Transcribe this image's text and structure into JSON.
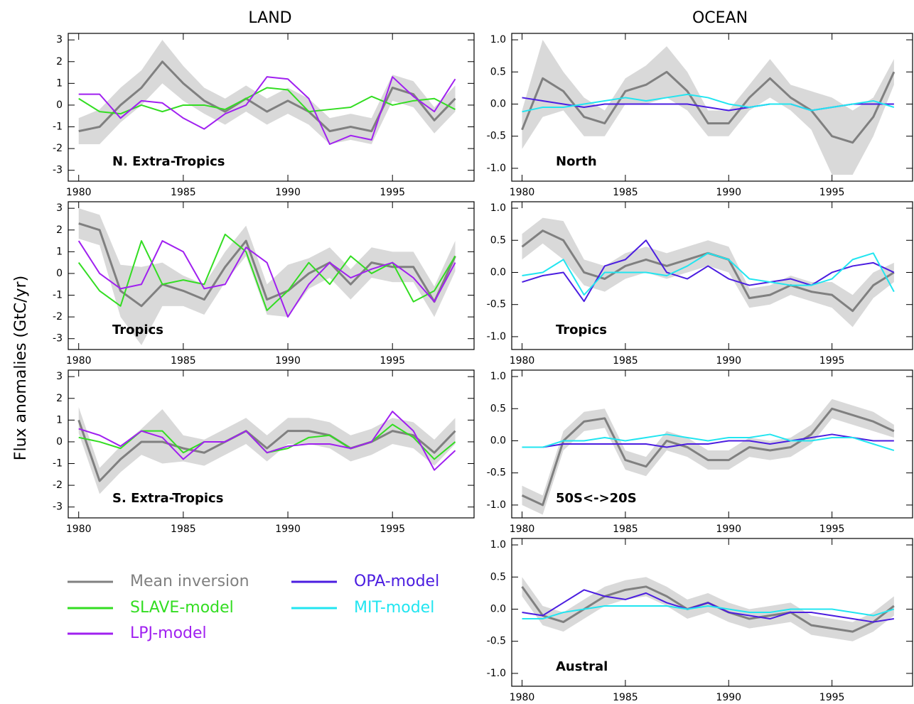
{
  "header": {
    "column_titles": [
      "LAND",
      "OCEAN"
    ],
    "y_label": "Flux anomalies (GtC/yr)"
  },
  "chart_data": [
    {
      "type": "line",
      "title": "N. Extra-Tropics",
      "x": [
        1980,
        1981,
        1982,
        1983,
        1984,
        1985,
        1986,
        1987,
        1988,
        1989,
        1990,
        1991,
        1992,
        1993,
        1994,
        1995,
        1996,
        1997,
        1998
      ],
      "xlim": [
        1979.5,
        1998.9
      ],
      "ylim": [
        -3.5,
        3.3
      ],
      "xticks": [
        1980,
        1985,
        1990,
        1995
      ],
      "yticks": [
        -3,
        -2,
        -1,
        0,
        1,
        2,
        3
      ],
      "band_color": "#d9d9d9",
      "band_upper": [
        -0.6,
        -0.2,
        0.8,
        1.6,
        3.0,
        1.8,
        0.8,
        0.3,
        0.9,
        0.3,
        0.8,
        0.3,
        -0.6,
        -0.4,
        -0.6,
        1.4,
        1.1,
        -0.1,
        0.9
      ],
      "band_lower": [
        -1.8,
        -1.8,
        -0.8,
        0.0,
        1.0,
        0.2,
        -0.4,
        -0.9,
        -0.3,
        -0.9,
        -0.4,
        -0.9,
        -1.8,
        -1.6,
        -1.8,
        0.2,
        -0.1,
        -1.3,
        -0.3
      ],
      "series": [
        {
          "name": "Mean inversion",
          "color": "#808080",
          "values": [
            -1.2,
            -1.0,
            0.0,
            0.8,
            2.0,
            1.0,
            0.2,
            -0.3,
            0.3,
            -0.3,
            0.2,
            -0.3,
            -1.2,
            -1.0,
            -1.2,
            0.8,
            0.5,
            -0.7,
            0.3
          ]
        },
        {
          "name": "SLAVE-model",
          "color": "#33dd22",
          "values": [
            0.3,
            -0.3,
            -0.4,
            0.0,
            -0.3,
            0.0,
            0.0,
            -0.2,
            0.3,
            0.8,
            0.7,
            -0.3,
            -0.2,
            -0.1,
            0.4,
            0.0,
            0.2,
            0.3,
            -0.2
          ]
        },
        {
          "name": "LPJ-model",
          "color": "#a020f0",
          "values": [
            0.5,
            0.5,
            -0.6,
            0.2,
            0.1,
            -0.6,
            -1.1,
            -0.4,
            0.0,
            1.3,
            1.2,
            0.3,
            -1.8,
            -1.4,
            -1.6,
            1.3,
            0.4,
            -0.3,
            1.2
          ]
        }
      ]
    },
    {
      "type": "line",
      "title": "Tropics",
      "x": [
        1980,
        1981,
        1982,
        1983,
        1984,
        1985,
        1986,
        1987,
        1988,
        1989,
        1990,
        1991,
        1992,
        1993,
        1994,
        1995,
        1996,
        1997,
        1998
      ],
      "xlim": [
        1979.5,
        1998.9
      ],
      "ylim": [
        -3.5,
        3.3
      ],
      "xticks": [
        1980,
        1985,
        1990,
        1995
      ],
      "yticks": [
        -3,
        -2,
        -1,
        0,
        1,
        2,
        3
      ],
      "band_color": "#d9d9d9",
      "band_upper": [
        3.0,
        2.7,
        0.4,
        0.3,
        0.5,
        -0.1,
        -0.5,
        1.0,
        2.2,
        -0.5,
        0.4,
        0.7,
        1.2,
        0.2,
        1.2,
        1.0,
        1.0,
        -0.6,
        1.5
      ],
      "band_lower": [
        1.6,
        1.3,
        -2.0,
        -3.3,
        -1.5,
        -1.5,
        -1.9,
        -0.4,
        0.8,
        -1.9,
        -2.0,
        -0.7,
        -0.2,
        -1.2,
        -0.2,
        -0.4,
        -0.4,
        -2.0,
        0.1
      ],
      "series": [
        {
          "name": "Mean inversion",
          "color": "#808080",
          "values": [
            2.3,
            2.0,
            -0.8,
            -1.5,
            -0.5,
            -0.8,
            -1.2,
            0.3,
            1.5,
            -1.2,
            -0.8,
            0.0,
            0.5,
            -0.5,
            0.5,
            0.3,
            0.3,
            -1.3,
            0.8
          ]
        },
        {
          "name": "SLAVE-model",
          "color": "#33dd22",
          "values": [
            0.5,
            -0.8,
            -1.5,
            1.5,
            -0.5,
            -0.3,
            -0.5,
            1.8,
            1.0,
            -1.7,
            -0.8,
            0.5,
            -0.5,
            0.8,
            0.0,
            0.5,
            -1.3,
            -0.8,
            0.8
          ]
        },
        {
          "name": "LPJ-model",
          "color": "#a020f0",
          "values": [
            1.5,
            0.0,
            -0.7,
            -0.5,
            1.5,
            1.0,
            -0.7,
            -0.5,
            1.2,
            0.5,
            -2.0,
            -0.5,
            0.5,
            -0.2,
            0.2,
            0.5,
            -0.2,
            -1.3,
            0.5
          ]
        }
      ]
    },
    {
      "type": "line",
      "title": "S. Extra-Tropics",
      "x": [
        1980,
        1981,
        1982,
        1983,
        1984,
        1985,
        1986,
        1987,
        1988,
        1989,
        1990,
        1991,
        1992,
        1993,
        1994,
        1995,
        1996,
        1997,
        1998
      ],
      "xlim": [
        1979.5,
        1998.9
      ],
      "ylim": [
        -3.5,
        3.3
      ],
      "xticks": [
        1980,
        1985,
        1990,
        1995
      ],
      "yticks": [
        -3,
        -2,
        -1,
        0,
        1,
        2,
        3
      ],
      "band_color": "#d9d9d9",
      "band_upper": [
        1.6,
        -1.2,
        -0.2,
        0.6,
        1.5,
        0.3,
        0.1,
        0.6,
        1.1,
        0.3,
        1.1,
        1.1,
        0.9,
        0.3,
        0.6,
        1.1,
        0.9,
        0.1,
        1.1
      ],
      "band_lower": [
        0.4,
        -2.4,
        -1.4,
        -0.6,
        -1.0,
        -0.9,
        -1.1,
        -0.6,
        -0.1,
        -0.9,
        -0.1,
        -0.1,
        -0.3,
        -0.9,
        -0.6,
        -0.1,
        -0.3,
        -1.1,
        -0.1
      ],
      "series": [
        {
          "name": "Mean inversion",
          "color": "#808080",
          "values": [
            1.0,
            -1.8,
            -0.8,
            0.0,
            0.0,
            -0.3,
            -0.5,
            0.0,
            0.5,
            -0.3,
            0.5,
            0.5,
            0.3,
            -0.3,
            0.0,
            0.5,
            0.3,
            -0.5,
            0.5
          ]
        },
        {
          "name": "SLAVE-model",
          "color": "#33dd22",
          "values": [
            0.2,
            0.0,
            -0.3,
            0.5,
            0.5,
            -0.5,
            0.0,
            0.0,
            0.5,
            -0.5,
            -0.3,
            0.2,
            0.3,
            -0.3,
            0.0,
            0.8,
            0.2,
            -0.8,
            0.0
          ]
        },
        {
          "name": "LPJ-model",
          "color": "#a020f0",
          "values": [
            0.6,
            0.3,
            -0.2,
            0.5,
            0.2,
            -0.8,
            0.0,
            0.0,
            0.5,
            -0.5,
            -0.2,
            -0.1,
            -0.1,
            -0.3,
            0.0,
            1.4,
            0.5,
            -1.3,
            -0.4
          ]
        }
      ]
    },
    {
      "type": "line",
      "title": "North",
      "x": [
        1980,
        1981,
        1982,
        1983,
        1984,
        1985,
        1986,
        1987,
        1988,
        1989,
        1990,
        1991,
        1992,
        1993,
        1994,
        1995,
        1996,
        1997,
        1998
      ],
      "xlim": [
        1979.5,
        1998.9
      ],
      "ylim": [
        -1.2,
        1.1
      ],
      "xticks": [
        1980,
        1985,
        1990,
        1995
      ],
      "yticks": [
        {
          "value": -1,
          "label": "-1.0"
        },
        -0.5,
        {
          "value": 0,
          "label": "0.0"
        },
        0.5,
        {
          "value": 1,
          "label": "1.0"
        }
      ],
      "band_color": "#d9d9d9",
      "band_upper": [
        -0.1,
        1.0,
        0.5,
        0.1,
        -0.1,
        0.4,
        0.6,
        0.9,
        0.5,
        -0.1,
        -0.1,
        0.3,
        0.7,
        0.3,
        0.2,
        0.1,
        -0.1,
        0.1,
        0.7
      ],
      "band_lower": [
        -0.7,
        -0.2,
        -0.1,
        -0.5,
        -0.5,
        0.0,
        0.0,
        0.1,
        -0.1,
        -0.5,
        -0.5,
        -0.1,
        0.1,
        -0.1,
        -0.4,
        -1.1,
        -1.1,
        -0.5,
        0.3
      ],
      "series": [
        {
          "name": "Mean inversion",
          "color": "#808080",
          "values": [
            -0.4,
            0.4,
            0.2,
            -0.2,
            -0.3,
            0.2,
            0.3,
            0.5,
            0.2,
            -0.3,
            -0.3,
            0.1,
            0.4,
            0.1,
            -0.1,
            -0.5,
            -0.6,
            -0.2,
            0.5
          ]
        },
        {
          "name": "OPA-model",
          "color": "#4b1de0",
          "values": [
            0.1,
            0.05,
            0.0,
            -0.05,
            0.0,
            0.0,
            0.0,
            0.0,
            0.0,
            -0.05,
            -0.1,
            -0.05,
            0.0,
            0.0,
            -0.1,
            -0.05,
            0.0,
            0.0,
            0.0
          ]
        },
        {
          "name": "MIT-model",
          "color": "#22e5f0",
          "values": [
            -0.12,
            -0.05,
            -0.05,
            0.0,
            0.05,
            0.1,
            0.05,
            0.1,
            0.15,
            0.1,
            0.0,
            -0.05,
            0.0,
            0.0,
            -0.1,
            -0.05,
            0.0,
            0.05,
            -0.05
          ]
        }
      ]
    },
    {
      "type": "line",
      "title": "Tropics",
      "x": [
        1980,
        1981,
        1982,
        1983,
        1984,
        1985,
        1986,
        1987,
        1988,
        1989,
        1990,
        1991,
        1992,
        1993,
        1994,
        1995,
        1996,
        1997,
        1998
      ],
      "xlim": [
        1979.5,
        1998.9
      ],
      "ylim": [
        -1.2,
        1.1
      ],
      "xticks": [
        1980,
        1985,
        1990,
        1995
      ],
      "yticks": [
        {
          "value": -1,
          "label": "-1.0"
        },
        -0.5,
        {
          "value": 0,
          "label": "0.0"
        },
        0.5,
        {
          "value": 1,
          "label": "1.0"
        }
      ],
      "band_color": "#d9d9d9",
      "band_upper": [
        0.6,
        0.85,
        0.8,
        0.2,
        0.1,
        0.3,
        0.4,
        0.3,
        0.4,
        0.5,
        0.4,
        -0.25,
        -0.2,
        -0.05,
        -0.15,
        -0.15,
        -0.35,
        0.0,
        0.15
      ],
      "band_lower": [
        0.2,
        0.45,
        0.2,
        -0.2,
        -0.3,
        -0.1,
        0.0,
        -0.1,
        0.0,
        0.1,
        0.0,
        -0.55,
        -0.5,
        -0.35,
        -0.45,
        -0.55,
        -0.85,
        -0.4,
        -0.15
      ],
      "series": [
        {
          "name": "Mean inversion",
          "color": "#808080",
          "values": [
            0.4,
            0.65,
            0.5,
            0.0,
            -0.1,
            0.1,
            0.2,
            0.1,
            0.2,
            0.3,
            0.2,
            -0.4,
            -0.35,
            -0.2,
            -0.3,
            -0.35,
            -0.6,
            -0.2,
            0.0
          ]
        },
        {
          "name": "OPA-model",
          "color": "#4b1de0",
          "values": [
            -0.15,
            -0.05,
            0.0,
            -0.45,
            0.1,
            0.2,
            0.5,
            0.0,
            -0.1,
            0.1,
            -0.1,
            -0.2,
            -0.15,
            -0.1,
            -0.2,
            0.0,
            0.1,
            0.15,
            0.0
          ]
        },
        {
          "name": "MIT-model",
          "color": "#22e5f0",
          "values": [
            -0.05,
            0.0,
            0.2,
            -0.35,
            0.0,
            0.0,
            0.0,
            -0.05,
            0.1,
            0.3,
            0.2,
            -0.1,
            -0.15,
            -0.2,
            -0.2,
            -0.1,
            0.2,
            0.3,
            -0.3
          ]
        }
      ]
    },
    {
      "type": "line",
      "title": "50S<->20S",
      "x": [
        1980,
        1981,
        1982,
        1983,
        1984,
        1985,
        1986,
        1987,
        1988,
        1989,
        1990,
        1991,
        1992,
        1993,
        1994,
        1995,
        1996,
        1997,
        1998
      ],
      "xlim": [
        1979.5,
        1998.9
      ],
      "ylim": [
        -1.2,
        1.1
      ],
      "xticks": [
        1980,
        1985,
        1990,
        1995
      ],
      "yticks": [
        {
          "value": -1,
          "label": "-1.0"
        },
        -0.5,
        {
          "value": 0,
          "label": "0.0"
        },
        0.5,
        {
          "value": 1,
          "label": "1.0"
        }
      ],
      "band_color": "#d9d9d9",
      "band_upper": [
        -0.7,
        -0.85,
        0.15,
        0.45,
        0.5,
        -0.15,
        -0.25,
        0.15,
        0.05,
        -0.15,
        -0.15,
        0.05,
        0.0,
        0.05,
        0.25,
        0.65,
        0.55,
        0.45,
        0.25
      ],
      "band_lower": [
        -1.0,
        -1.15,
        -0.15,
        0.15,
        0.2,
        -0.45,
        -0.55,
        -0.15,
        -0.25,
        -0.45,
        -0.45,
        -0.25,
        -0.3,
        -0.25,
        -0.05,
        0.35,
        0.25,
        0.15,
        0.05
      ],
      "series": [
        {
          "name": "Mean inversion",
          "color": "#808080",
          "values": [
            -0.85,
            -1.0,
            0.0,
            0.3,
            0.35,
            -0.3,
            -0.4,
            0.0,
            -0.1,
            -0.3,
            -0.3,
            -0.1,
            -0.15,
            -0.1,
            0.1,
            0.5,
            0.4,
            0.3,
            0.15
          ]
        },
        {
          "name": "OPA-model",
          "color": "#4b1de0",
          "values": [
            -0.1,
            -0.1,
            -0.05,
            -0.05,
            -0.05,
            -0.05,
            -0.05,
            -0.1,
            -0.05,
            -0.05,
            0.0,
            0.0,
            -0.05,
            0.0,
            0.05,
            0.1,
            0.05,
            0.0,
            0.0
          ]
        },
        {
          "name": "MIT-model",
          "color": "#22e5f0",
          "values": [
            -0.1,
            -0.1,
            0.0,
            0.0,
            0.05,
            0.0,
            0.05,
            0.1,
            0.05,
            0.0,
            0.05,
            0.05,
            0.1,
            0.0,
            0.0,
            0.05,
            0.05,
            -0.05,
            -0.15
          ]
        }
      ]
    },
    {
      "type": "line",
      "title": "Austral",
      "x": [
        1980,
        1981,
        1982,
        1983,
        1984,
        1985,
        1986,
        1987,
        1988,
        1989,
        1990,
        1991,
        1992,
        1993,
        1994,
        1995,
        1996,
        1997,
        1998
      ],
      "xlim": [
        1979.5,
        1998.9
      ],
      "ylim": [
        -1.2,
        1.1
      ],
      "xticks": [
        1980,
        1985,
        1990,
        1995
      ],
      "yticks": [
        {
          "value": -1,
          "label": "-1.0"
        },
        -0.5,
        {
          "value": 0,
          "label": "0.0"
        },
        0.5,
        {
          "value": 1,
          "label": "1.0"
        }
      ],
      "band_color": "#d9d9d9",
      "band_upper": [
        0.5,
        0.05,
        -0.05,
        0.15,
        0.35,
        0.45,
        0.5,
        0.35,
        0.15,
        0.25,
        0.1,
        0.0,
        0.05,
        0.1,
        -0.1,
        -0.15,
        -0.2,
        -0.05,
        0.2
      ],
      "band_lower": [
        0.2,
        -0.25,
        -0.35,
        -0.15,
        0.05,
        0.15,
        0.2,
        0.05,
        -0.15,
        -0.05,
        -0.2,
        -0.3,
        -0.25,
        -0.2,
        -0.4,
        -0.45,
        -0.5,
        -0.35,
        -0.1
      ],
      "series": [
        {
          "name": "Mean inversion",
          "color": "#808080",
          "values": [
            0.35,
            -0.1,
            -0.2,
            0.0,
            0.2,
            0.3,
            0.35,
            0.2,
            0.0,
            0.1,
            -0.05,
            -0.15,
            -0.1,
            -0.05,
            -0.25,
            -0.3,
            -0.35,
            -0.2,
            0.05
          ]
        },
        {
          "name": "OPA-model",
          "color": "#4b1de0",
          "values": [
            -0.05,
            -0.1,
            0.1,
            0.3,
            0.2,
            0.15,
            0.25,
            0.1,
            0.0,
            0.1,
            -0.05,
            -0.1,
            -0.15,
            -0.05,
            -0.05,
            -0.1,
            -0.15,
            -0.2,
            -0.15
          ]
        },
        {
          "name": "MIT-model",
          "color": "#22e5f0",
          "values": [
            -0.15,
            -0.15,
            -0.05,
            0.0,
            0.05,
            0.05,
            0.05,
            0.05,
            0.0,
            0.05,
            0.0,
            -0.05,
            -0.05,
            0.0,
            0.0,
            0.0,
            -0.05,
            -0.1,
            0.0
          ]
        }
      ]
    }
  ]
}
